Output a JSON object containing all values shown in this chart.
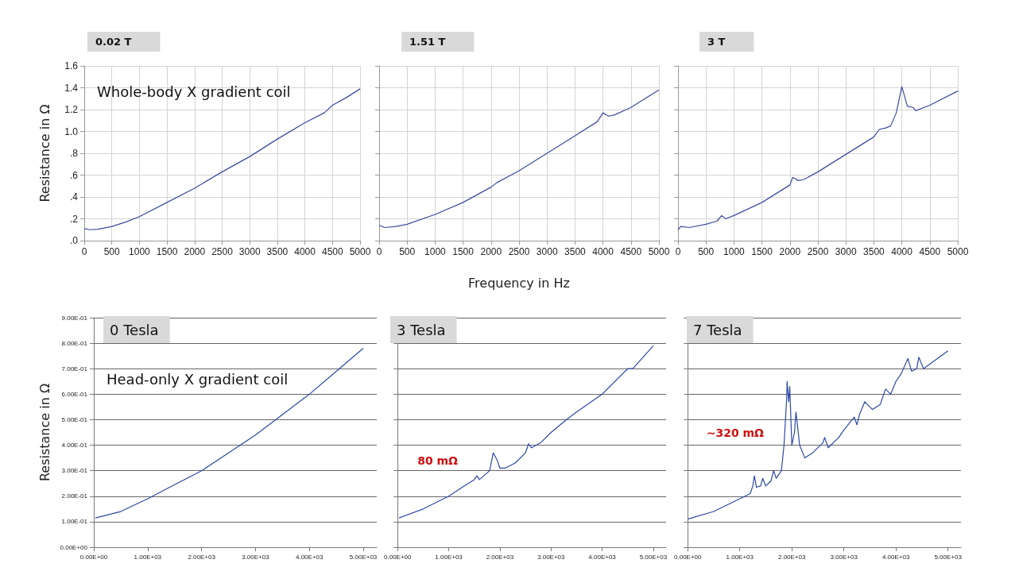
{
  "chart_data": [
    {
      "type": "line",
      "title": "0.02 T",
      "ylabel": "Resistance in Ω",
      "annotations": [
        "Whole-body X gradient coil"
      ],
      "grid": true,
      "x": [
        0,
        100,
        250,
        500,
        750,
        1000,
        1500,
        2000,
        2500,
        3000,
        3500,
        4000,
        4350,
        4500,
        4750,
        5000
      ],
      "series": [
        {
          "color": "#3b4ba0",
          "values": [
            0.11,
            0.1,
            0.105,
            0.13,
            0.17,
            0.22,
            0.35,
            0.48,
            0.63,
            0.77,
            0.93,
            1.08,
            1.17,
            1.24,
            1.31,
            1.39
          ]
        }
      ],
      "xlim": [
        0,
        5000
      ],
      "xticks": [
        0,
        500,
        1000,
        1500,
        2000,
        2500,
        3000,
        3500,
        4000,
        4500,
        5000
      ],
      "ylim": [
        0,
        1.6
      ],
      "yticks": [
        {
          "value": 0,
          "label": ".0"
        },
        {
          "value": 0.2,
          "label": ".2"
        },
        {
          "value": 0.4,
          "label": ".4"
        },
        {
          "value": 0.6,
          "label": ".6"
        },
        {
          "value": 0.8,
          "label": ".8"
        },
        {
          "value": 1,
          "label": "1.0"
        },
        {
          "value": 1.2,
          "label": "1.2"
        },
        {
          "value": 1.4,
          "label": "1.4"
        },
        {
          "value": 1.6,
          "label": "1.6"
        }
      ]
    },
    {
      "type": "line",
      "title": "1.51 T",
      "xlabel": "Frequency in Hz",
      "grid": true,
      "tick_labels": "x",
      "x": [
        0,
        100,
        300,
        500,
        1000,
        1500,
        2000,
        2100,
        2500,
        3000,
        3500,
        3900,
        4000,
        4100,
        4200,
        4500,
        5000
      ],
      "series": [
        {
          "color": "#3b4ba0",
          "values": [
            0.14,
            0.12,
            0.13,
            0.15,
            0.24,
            0.35,
            0.49,
            0.53,
            0.64,
            0.8,
            0.96,
            1.09,
            1.17,
            1.14,
            1.15,
            1.22,
            1.38
          ]
        }
      ],
      "xlim": [
        0,
        5000
      ],
      "xticks": [
        0,
        500,
        1000,
        1500,
        2000,
        2500,
        3000,
        3500,
        4000,
        4500,
        5000
      ],
      "ylim": [
        0,
        1.6
      ],
      "yticks": [
        0,
        0.2,
        0.4,
        0.6,
        0.8,
        1,
        1.2,
        1.4,
        1.6
      ]
    },
    {
      "type": "line",
      "title": "3 T",
      "grid": true,
      "tick_labels": "x",
      "x": [
        0,
        50,
        200,
        500,
        700,
        780,
        850,
        1000,
        1500,
        2000,
        2050,
        2150,
        2250,
        2500,
        3000,
        3500,
        3600,
        3700,
        3800,
        3900,
        4000,
        4100,
        4200,
        4250,
        4500,
        5000
      ],
      "series": [
        {
          "color": "#3b4ba0",
          "values": [
            0.1,
            0.13,
            0.12,
            0.15,
            0.18,
            0.23,
            0.2,
            0.23,
            0.35,
            0.51,
            0.58,
            0.55,
            0.56,
            0.63,
            0.79,
            0.95,
            1.02,
            1.03,
            1.05,
            1.17,
            1.41,
            1.23,
            1.22,
            1.19,
            1.24,
            1.37
          ]
        }
      ],
      "xlim": [
        0,
        5000
      ],
      "xticks": [
        0,
        500,
        1000,
        1500,
        2000,
        2500,
        3000,
        3500,
        4000,
        4500,
        5000
      ],
      "ylim": [
        0,
        1.6
      ],
      "yticks": [
        0,
        0.2,
        0.4,
        0.6,
        0.8,
        1,
        1.2,
        1.4,
        1.6
      ]
    },
    {
      "type": "line",
      "title": "0 Tesla",
      "ylabel": "Resistance in Ω",
      "annotations": [
        "Head-only X gradient coil"
      ],
      "grid": "y",
      "x": [
        30,
        500,
        1000,
        1500,
        2000,
        2500,
        3000,
        3500,
        4000,
        4500,
        5000
      ],
      "series": [
        {
          "color": "#2e48a8",
          "values": [
            0.115,
            0.14,
            0.19,
            0.245,
            0.3,
            0.37,
            0.44,
            0.52,
            0.6,
            0.69,
            0.78
          ]
        }
      ],
      "xlim": [
        0,
        5250
      ],
      "xticks": [
        {
          "value": 0,
          "label": "0.00E+00"
        },
        {
          "value": 1000,
          "label": "1.00E+03"
        },
        {
          "value": 2000,
          "label": "2.00E+03"
        },
        {
          "value": 3000,
          "label": "3.00E+03"
        },
        {
          "value": 4000,
          "label": "4.00E+03"
        },
        {
          "value": 5000,
          "label": "5.00E+03"
        }
      ],
      "ylim": [
        0,
        0.9
      ],
      "yticks": [
        {
          "value": 0,
          "label": "0.00E+00"
        },
        {
          "value": 0.1,
          "label": "1.00E-01"
        },
        {
          "value": 0.2,
          "label": "2.00E-01"
        },
        {
          "value": 0.3,
          "label": "3.00E-01"
        },
        {
          "value": 0.4,
          "label": "4.00E-01"
        },
        {
          "value": 0.5,
          "label": "5.00E-01"
        },
        {
          "value": 0.6,
          "label": "6.00E-01"
        },
        {
          "value": 0.7,
          "label": "7.00E-01"
        },
        {
          "value": 0.8,
          "label": "8.00E-01"
        },
        {
          "value": 0.9,
          "label": "9.00E-01"
        }
      ]
    },
    {
      "type": "line",
      "title": "3 Tesla",
      "annotations": [
        "80 mΩ"
      ],
      "grid": "y",
      "tick_labels": "x",
      "x": [
        30,
        500,
        1000,
        1300,
        1500,
        1550,
        1600,
        1800,
        1870,
        1950,
        2000,
        2100,
        2300,
        2500,
        2560,
        2620,
        2800,
        3000,
        3300,
        3500,
        4000,
        4500,
        4600,
        5000
      ],
      "series": [
        {
          "color": "#2e48a8",
          "values": [
            0.115,
            0.15,
            0.2,
            0.24,
            0.265,
            0.28,
            0.265,
            0.3,
            0.37,
            0.34,
            0.31,
            0.31,
            0.33,
            0.37,
            0.405,
            0.39,
            0.41,
            0.45,
            0.5,
            0.53,
            0.6,
            0.7,
            0.7,
            0.79
          ]
        }
      ],
      "xlim": [
        0,
        5250
      ],
      "xticks": [
        {
          "value": 0,
          "label": "0.00E+00"
        },
        {
          "value": 1000,
          "label": "1.00E+03"
        },
        {
          "value": 2000,
          "label": "2.00E+03"
        },
        {
          "value": 3000,
          "label": "3.00E+03"
        },
        {
          "value": 4000,
          "label": "4.00E+03"
        },
        {
          "value": 5000,
          "label": "5.00E+03"
        }
      ],
      "ylim": [
        0,
        0.9
      ],
      "yticks": [
        0,
        0.1,
        0.2,
        0.3,
        0.4,
        0.5,
        0.6,
        0.7,
        0.8,
        0.9
      ]
    },
    {
      "type": "line",
      "title": "7 Tesla",
      "annotations": [
        "~320 mΩ"
      ],
      "grid": "y",
      "tick_labels": "x",
      "x": [
        0,
        500,
        1000,
        1200,
        1250,
        1280,
        1320,
        1400,
        1440,
        1500,
        1600,
        1650,
        1700,
        1800,
        1850,
        1900,
        1910,
        1940,
        1960,
        2000,
        2050,
        2080,
        2150,
        2250,
        2400,
        2600,
        2630,
        2700,
        2900,
        3000,
        3200,
        3250,
        3300,
        3400,
        3550,
        3700,
        3800,
        3900,
        4000,
        4100,
        4230,
        4300,
        4400,
        4440,
        4530,
        5000
      ],
      "series": [
        {
          "color": "#2e48a8",
          "values": [
            0.11,
            0.14,
            0.19,
            0.21,
            0.24,
            0.28,
            0.235,
            0.24,
            0.27,
            0.24,
            0.26,
            0.3,
            0.27,
            0.3,
            0.4,
            0.58,
            0.65,
            0.57,
            0.63,
            0.4,
            0.45,
            0.53,
            0.4,
            0.35,
            0.37,
            0.41,
            0.43,
            0.39,
            0.43,
            0.46,
            0.51,
            0.48,
            0.52,
            0.57,
            0.54,
            0.56,
            0.62,
            0.6,
            0.65,
            0.68,
            0.74,
            0.69,
            0.7,
            0.745,
            0.7,
            0.77
          ]
        }
      ],
      "xlim": [
        0,
        5250
      ],
      "xticks": [
        {
          "value": 0,
          "label": "0.00E+00"
        },
        {
          "value": 1000,
          "label": "1.00E+03"
        },
        {
          "value": 2000,
          "label": "2.00E+03"
        },
        {
          "value": 3000,
          "label": "3.00E+03"
        },
        {
          "value": 4000,
          "label": "4.00E+03"
        },
        {
          "value": 5000,
          "label": "5.00E+03"
        }
      ],
      "ylim": [
        0,
        0.9
      ],
      "yticks": [
        0,
        0.1,
        0.2,
        0.3,
        0.4,
        0.5,
        0.6,
        0.7,
        0.8,
        0.9
      ]
    }
  ]
}
